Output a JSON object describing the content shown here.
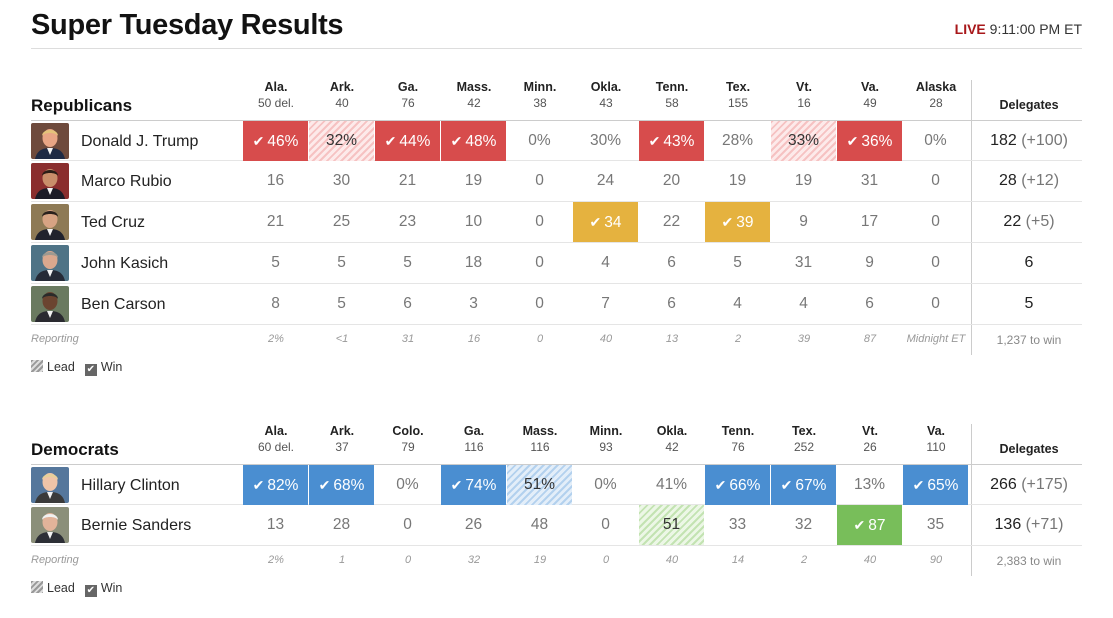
{
  "title": "Super Tuesday Results",
  "live": {
    "tag": "LIVE",
    "time": "9:11:00 PM ET"
  },
  "colors": {
    "rep_win": "#d74c4c",
    "rep_lead": "#f6c2c2",
    "cruz_win": "#e5b23f",
    "dem_win": "#4a8ed1",
    "dem_lead": "#b3d1ee",
    "sanders_win": "#78be5a",
    "sanders_lead": "#c3e3b2",
    "live": "#a8171a"
  },
  "republicans": {
    "label": "Republicans",
    "delegates_header": "Delegates",
    "states": [
      {
        "name": "Ala.",
        "del": "50 del."
      },
      {
        "name": "Ark.",
        "del": "40"
      },
      {
        "name": "Ga.",
        "del": "76"
      },
      {
        "name": "Mass.",
        "del": "42"
      },
      {
        "name": "Minn.",
        "del": "38"
      },
      {
        "name": "Okla.",
        "del": "43"
      },
      {
        "name": "Tenn.",
        "del": "58"
      },
      {
        "name": "Tex.",
        "del": "155"
      },
      {
        "name": "Vt.",
        "del": "16"
      },
      {
        "name": "Va.",
        "del": "49"
      },
      {
        "name": "Alaska",
        "del": "28"
      }
    ],
    "candidates": [
      {
        "name": "Donald J. Trump",
        "photo": "trump-photo",
        "delegates": "182",
        "gain": "(+100)",
        "cells": [
          {
            "v": "46%",
            "s": "win-r"
          },
          {
            "v": "32%",
            "s": "lead-r"
          },
          {
            "v": "44%",
            "s": "win-r"
          },
          {
            "v": "48%",
            "s": "win-r"
          },
          {
            "v": "0%",
            "s": ""
          },
          {
            "v": "30%",
            "s": ""
          },
          {
            "v": "43%",
            "s": "win-r"
          },
          {
            "v": "28%",
            "s": ""
          },
          {
            "v": "33%",
            "s": "lead-r"
          },
          {
            "v": "36%",
            "s": "win-r"
          },
          {
            "v": "0%",
            "s": ""
          }
        ]
      },
      {
        "name": "Marco Rubio",
        "photo": "rubio-photo",
        "delegates": "28",
        "gain": "(+12)",
        "cells": [
          {
            "v": "16",
            "s": ""
          },
          {
            "v": "30",
            "s": ""
          },
          {
            "v": "21",
            "s": ""
          },
          {
            "v": "19",
            "s": ""
          },
          {
            "v": "0",
            "s": ""
          },
          {
            "v": "24",
            "s": ""
          },
          {
            "v": "20",
            "s": ""
          },
          {
            "v": "19",
            "s": ""
          },
          {
            "v": "19",
            "s": ""
          },
          {
            "v": "31",
            "s": ""
          },
          {
            "v": "0",
            "s": ""
          }
        ]
      },
      {
        "name": "Ted Cruz",
        "photo": "cruz-photo",
        "delegates": "22",
        "gain": "(+5)",
        "cells": [
          {
            "v": "21",
            "s": ""
          },
          {
            "v": "25",
            "s": ""
          },
          {
            "v": "23",
            "s": ""
          },
          {
            "v": "10",
            "s": ""
          },
          {
            "v": "0",
            "s": ""
          },
          {
            "v": "34",
            "s": "win-y"
          },
          {
            "v": "22",
            "s": ""
          },
          {
            "v": "39",
            "s": "win-y"
          },
          {
            "v": "9",
            "s": ""
          },
          {
            "v": "17",
            "s": ""
          },
          {
            "v": "0",
            "s": ""
          }
        ]
      },
      {
        "name": "John Kasich",
        "photo": "kasich-photo",
        "delegates": "6",
        "gain": "",
        "cells": [
          {
            "v": "5",
            "s": ""
          },
          {
            "v": "5",
            "s": ""
          },
          {
            "v": "5",
            "s": ""
          },
          {
            "v": "18",
            "s": ""
          },
          {
            "v": "0",
            "s": ""
          },
          {
            "v": "4",
            "s": ""
          },
          {
            "v": "6",
            "s": ""
          },
          {
            "v": "5",
            "s": ""
          },
          {
            "v": "31",
            "s": ""
          },
          {
            "v": "9",
            "s": ""
          },
          {
            "v": "0",
            "s": ""
          }
        ]
      },
      {
        "name": "Ben Carson",
        "photo": "carson-photo",
        "delegates": "5",
        "gain": "",
        "cells": [
          {
            "v": "8",
            "s": ""
          },
          {
            "v": "5",
            "s": ""
          },
          {
            "v": "6",
            "s": ""
          },
          {
            "v": "3",
            "s": ""
          },
          {
            "v": "0",
            "s": ""
          },
          {
            "v": "7",
            "s": ""
          },
          {
            "v": "6",
            "s": ""
          },
          {
            "v": "4",
            "s": ""
          },
          {
            "v": "4",
            "s": ""
          },
          {
            "v": "6",
            "s": ""
          },
          {
            "v": "0",
            "s": ""
          }
        ]
      }
    ],
    "reporting_label": "Reporting",
    "reporting": [
      "2%",
      "<1",
      "31",
      "16",
      "0",
      "40",
      "13",
      "2",
      "39",
      "87",
      "Midnight ET"
    ],
    "to_win": "1,237 to win"
  },
  "democrats": {
    "label": "Democrats",
    "delegates_header": "Delegates",
    "states": [
      {
        "name": "Ala.",
        "del": "60 del."
      },
      {
        "name": "Ark.",
        "del": "37"
      },
      {
        "name": "Colo.",
        "del": "79"
      },
      {
        "name": "Ga.",
        "del": "116"
      },
      {
        "name": "Mass.",
        "del": "116"
      },
      {
        "name": "Minn.",
        "del": "93"
      },
      {
        "name": "Okla.",
        "del": "42"
      },
      {
        "name": "Tenn.",
        "del": "76"
      },
      {
        "name": "Tex.",
        "del": "252"
      },
      {
        "name": "Vt.",
        "del": "26"
      },
      {
        "name": "Va.",
        "del": "110"
      }
    ],
    "candidates": [
      {
        "name": "Hillary Clinton",
        "photo": "clinton-photo",
        "delegates": "266",
        "gain": "(+175)",
        "cells": [
          {
            "v": "82%",
            "s": "win-b"
          },
          {
            "v": "68%",
            "s": "win-b"
          },
          {
            "v": "0%",
            "s": ""
          },
          {
            "v": "74%",
            "s": "win-b"
          },
          {
            "v": "51%",
            "s": "lead-b"
          },
          {
            "v": "0%",
            "s": ""
          },
          {
            "v": "41%",
            "s": ""
          },
          {
            "v": "66%",
            "s": "win-b"
          },
          {
            "v": "67%",
            "s": "win-b"
          },
          {
            "v": "13%",
            "s": ""
          },
          {
            "v": "65%",
            "s": "win-b"
          }
        ]
      },
      {
        "name": "Bernie Sanders",
        "photo": "sanders-photo",
        "delegates": "136",
        "gain": "(+71)",
        "cells": [
          {
            "v": "13",
            "s": ""
          },
          {
            "v": "28",
            "s": ""
          },
          {
            "v": "0",
            "s": ""
          },
          {
            "v": "26",
            "s": ""
          },
          {
            "v": "48",
            "s": ""
          },
          {
            "v": "0",
            "s": ""
          },
          {
            "v": "51",
            "s": "lead-g"
          },
          {
            "v": "33",
            "s": ""
          },
          {
            "v": "32",
            "s": ""
          },
          {
            "v": "87",
            "s": "win-g"
          },
          {
            "v": "35",
            "s": ""
          }
        ]
      }
    ],
    "reporting_label": "Reporting",
    "reporting": [
      "2%",
      "1",
      "0",
      "32",
      "19",
      "0",
      "40",
      "14",
      "2",
      "40",
      "90"
    ],
    "to_win": "2,383 to win"
  },
  "legend": {
    "lead": "Lead",
    "win": "Win"
  }
}
